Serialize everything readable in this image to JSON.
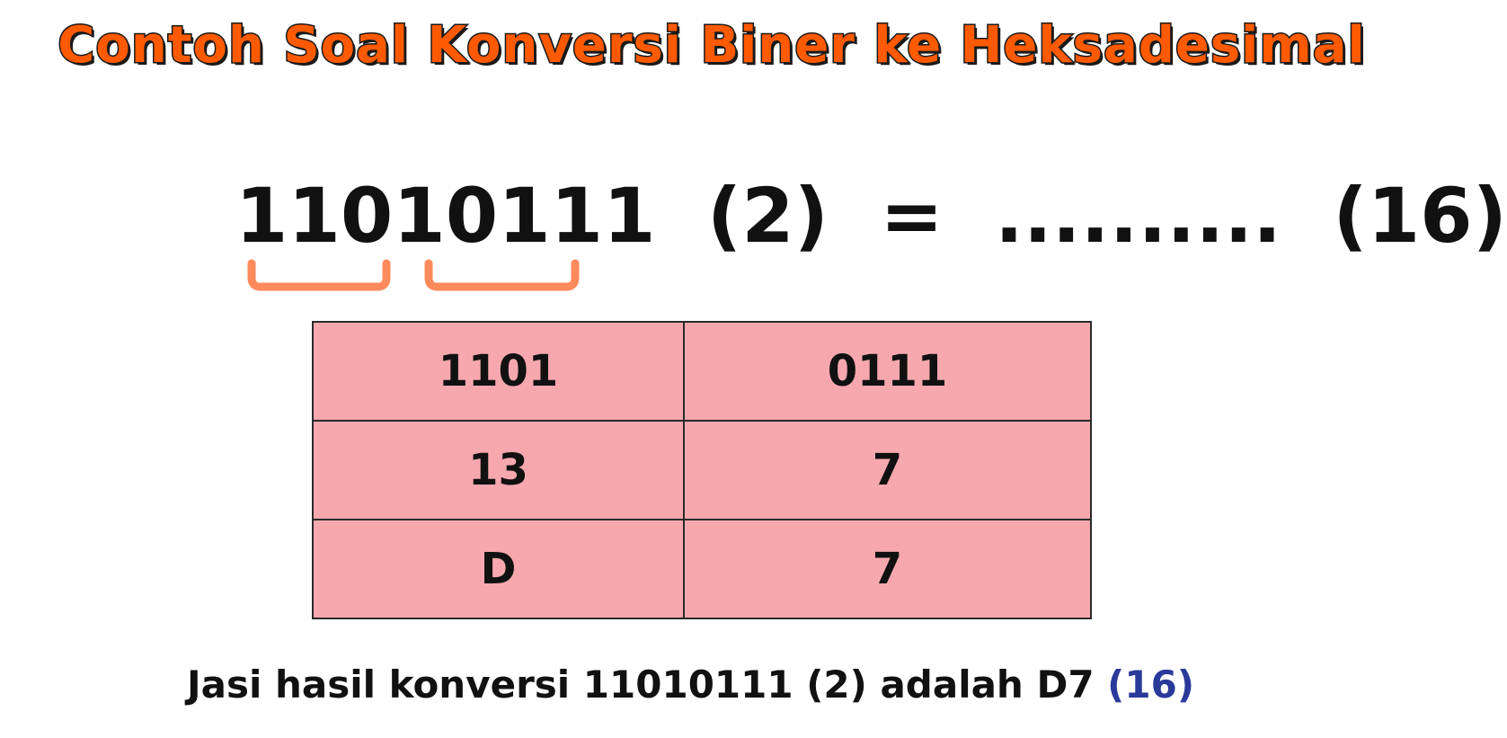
{
  "title": "Contoh Soal Konversi Biner ke Heksadesimal",
  "equation": {
    "binary": "11010111",
    "binary_base": "(2)",
    "equals": "=",
    "blank": "..........",
    "target_base": "(16)"
  },
  "colors": {
    "title": "#ff5a00",
    "bracket": "#ff8a5c",
    "table_fill": "#f7a8ae",
    "base_highlight": "#2a3a9a"
  },
  "table": {
    "rows": [
      [
        "1101",
        "0111"
      ],
      [
        "13",
        "7"
      ],
      [
        "D",
        "7"
      ]
    ]
  },
  "conclusion": {
    "text": "Jasi hasil konversi 11010111 (2) adalah D7",
    "base": "(16)"
  }
}
